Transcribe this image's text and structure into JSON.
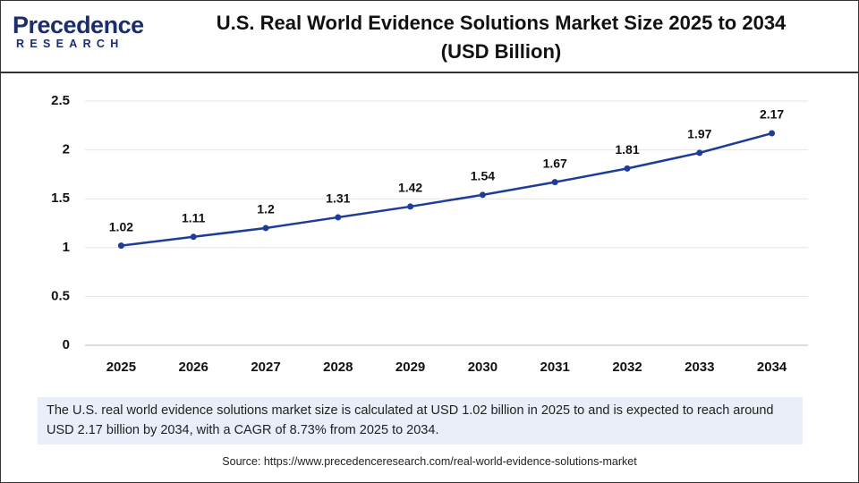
{
  "logo": {
    "name": "Precedence",
    "tagline": "RESEARCH"
  },
  "chart_data": {
    "type": "line",
    "title": "U.S. Real World Evidence Solutions Market Size 2025 to 2034",
    "subtitle": "(USD Billion)",
    "categories": [
      "2025",
      "2026",
      "2027",
      "2028",
      "2029",
      "2030",
      "2031",
      "2032",
      "2033",
      "2034"
    ],
    "values": [
      1.02,
      1.11,
      1.2,
      1.31,
      1.42,
      1.54,
      1.67,
      1.81,
      1.97,
      2.17
    ],
    "color": "#1f3c99",
    "ylim": [
      0,
      2.5
    ],
    "yticks": [
      0,
      0.5,
      1,
      1.5,
      2,
      2.5
    ],
    "grid": true
  },
  "description": "The U.S. real world evidence solutions market size is calculated at USD 1.02 billion in 2025 to and is expected to reach around USD 2.17 billion by 2034, with a CAGR of 8.73% from 2025 to 2034.",
  "source": "Source: https://www.precedenceresearch.com/real-world-evidence-solutions-market"
}
